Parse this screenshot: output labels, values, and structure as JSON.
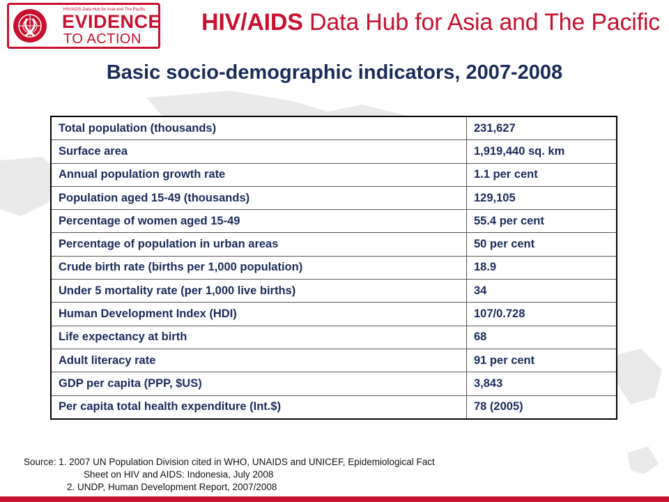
{
  "header": {
    "logo_small_text": "HIV/AIDS Data Hub for Asia and The Pacific",
    "logo_line1": "EVIDENCE",
    "logo_line2": "TO ACTION",
    "hub_bold": "HIV/AIDS",
    "hub_rest": " Data Hub for Asia and The Pacific"
  },
  "title": "Basic socio-demographic indicators, 2007-2008",
  "table": {
    "rows": [
      {
        "label": "Total population (thousands)",
        "value": "231,627"
      },
      {
        "label": "Surface area",
        "value": "1,919,440 sq. km"
      },
      {
        "label": "Annual population growth rate",
        "value": "1.1 per cent"
      },
      {
        "label": "Population aged 15-49 (thousands)",
        "value": "129,105"
      },
      {
        "label": "Percentage of women aged 15-49",
        "value": "55.4 per cent"
      },
      {
        "label": "Percentage of population in urban areas",
        "value": "50 per cent"
      },
      {
        "label": "Crude birth rate (births per 1,000 population)",
        "value": "18.9"
      },
      {
        "label": "Under 5 mortality rate (per 1,000 live births)",
        "value": "34"
      },
      {
        "label": "Human Development Index (HDI)",
        "value": "107/0.728"
      },
      {
        "label": "Life expectancy at birth",
        "value": "68"
      },
      {
        "label": "Adult literacy rate",
        "value": "91 per cent"
      },
      {
        "label": "GDP per capita (PPP, $US)",
        "value": "3,843"
      },
      {
        "label": "Per capita total health expenditure (Int.$)",
        "value": "78 (2005)"
      }
    ]
  },
  "source": {
    "line1": "Source: 1. 2007 UN Population Division cited in WHO, UNAIDS and UNICEF, Epidemiological Fact",
    "line2": "Sheet on HIV and AIDS: Indonesia, July 2008",
    "line3": "2. UNDP, Human Development Report, 2007/2008"
  },
  "colors": {
    "brand_red": "#c8102e",
    "title_navy": "#1a2a5a"
  },
  "icons": {
    "logo_emblem": "un-emblem-ribbon-icon"
  }
}
